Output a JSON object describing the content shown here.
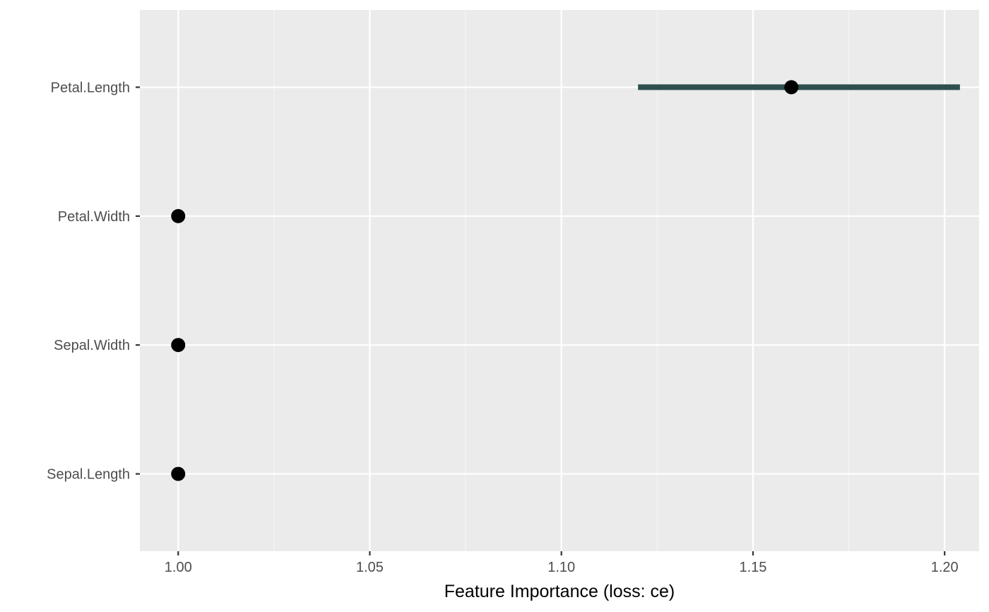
{
  "chart_data": {
    "type": "scatter",
    "subtype": "point-range",
    "title": "",
    "xlabel": "Feature Importance (loss: ce)",
    "ylabel": "",
    "xlim": [
      0.99,
      1.209
    ],
    "x_ticks": [
      1.0,
      1.05,
      1.1,
      1.15,
      1.2
    ],
    "x_tick_labels": [
      "1.00",
      "1.05",
      "1.10",
      "1.15",
      "1.20"
    ],
    "categories": [
      "Sepal.Length",
      "Sepal.Width",
      "Petal.Width",
      "Petal.Length"
    ],
    "points": [
      {
        "feature": "Petal.Length",
        "importance": 1.16,
        "lower": 1.12,
        "upper": 1.204
      },
      {
        "feature": "Petal.Width",
        "importance": 1.0,
        "lower": 1.0,
        "upper": 1.0
      },
      {
        "feature": "Sepal.Width",
        "importance": 1.0,
        "lower": 1.0,
        "upper": 1.0
      },
      {
        "feature": "Sepal.Length",
        "importance": 1.0,
        "lower": 1.0,
        "upper": 1.0
      }
    ],
    "grid": true,
    "legend": "none",
    "colors": {
      "panel_background": "#ebebeb",
      "grid_major": "#ffffff",
      "grid_minor": "#f5f5f5",
      "range_line": "#2f4f4f",
      "point": "#000000",
      "tick_text": "#4d4d4d",
      "axis_title": "#000000",
      "tick_mark": "#333333"
    }
  }
}
